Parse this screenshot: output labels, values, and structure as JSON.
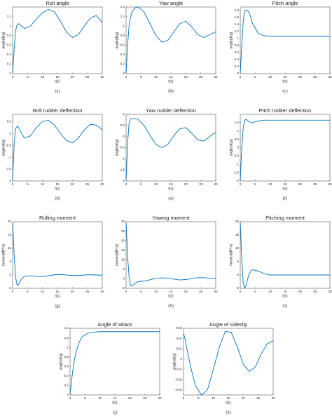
{
  "chart_data": [
    {
      "type": "line",
      "title": "Roll angle",
      "xlabel": "t(s)",
      "ylabel": "angle(deg)",
      "label": "(a)",
      "color": "#0072bd",
      "xlim": [
        0,
        30
      ],
      "xticks": [
        0,
        5,
        10,
        15,
        20,
        25,
        30
      ],
      "ylim": [
        0,
        1.4
      ],
      "yticks": [
        0,
        0.2,
        0.4,
        0.6,
        0.8,
        1,
        1.2
      ],
      "x": [
        0,
        0.5,
        1,
        1.5,
        2,
        3,
        4,
        6,
        8,
        10,
        12,
        14,
        16,
        18,
        20,
        22,
        24,
        26,
        28,
        30
      ],
      "values": [
        0,
        0.5,
        0.9,
        1.03,
        1.05,
        1.0,
        0.95,
        1.0,
        1.15,
        1.28,
        1.35,
        1.3,
        1.1,
        0.88,
        0.76,
        0.82,
        1.0,
        1.17,
        1.22,
        1.08
      ]
    },
    {
      "type": "line",
      "title": "Yaw angle",
      "xlabel": "t(s)",
      "ylabel": "angle(deg)",
      "label": "(b)",
      "color": "#0072bd",
      "xlim": [
        0,
        30
      ],
      "xticks": [
        0,
        5,
        10,
        15,
        20,
        25,
        30
      ],
      "ylim": [
        0,
        1.4
      ],
      "yticks": [
        0,
        0.2,
        0.4,
        0.6,
        0.8,
        1,
        1.2,
        1.4
      ],
      "x": [
        0,
        0.5,
        1,
        1.5,
        2,
        3,
        4,
        6,
        8,
        10,
        12,
        14,
        16,
        18,
        20,
        22,
        24,
        26,
        28,
        30
      ],
      "values": [
        0,
        0.6,
        1.0,
        1.2,
        1.3,
        1.38,
        1.4,
        1.3,
        1.05,
        0.8,
        0.66,
        0.7,
        0.88,
        1.05,
        1.1,
        0.98,
        0.82,
        0.76,
        0.82,
        0.88
      ]
    },
    {
      "type": "line",
      "title": "Pitch angle",
      "xlabel": "t(s)",
      "ylabel": "angle(deg)",
      "label": "(c)",
      "color": "#0072bd",
      "xlim": [
        0,
        30
      ],
      "xticks": [
        0,
        5,
        10,
        15,
        20,
        25,
        30
      ],
      "ylim": [
        0,
        1.9
      ],
      "yticks": [
        0,
        0.2,
        0.4,
        0.6,
        0.8,
        1,
        1.2,
        1.4,
        1.6,
        1.8
      ],
      "x": [
        0,
        0.5,
        1,
        1.5,
        2,
        3,
        4,
        6,
        8,
        10,
        12,
        14,
        16,
        18,
        20,
        22,
        24,
        26,
        28,
        30
      ],
      "values": [
        0,
        0.8,
        1.5,
        1.78,
        1.82,
        1.75,
        1.45,
        1.15,
        1.08,
        1.07,
        1.07,
        1.07,
        1.07,
        1.07,
        1.07,
        1.07,
        1.07,
        1.07,
        1.07,
        1.07
      ]
    },
    {
      "type": "line",
      "title": "Roll rudder deflection",
      "xlabel": "t(s)",
      "ylabel": "angle(deg)",
      "label": "(d)",
      "color": "#0072bd",
      "xlim": [
        0,
        30
      ],
      "xticks": [
        0,
        5,
        10,
        15,
        20,
        25,
        30
      ],
      "ylim": [
        -2,
        0.8
      ],
      "yticks": [
        -2,
        -1.5,
        -1,
        -0.5,
        0,
        0.5
      ],
      "x": [
        0,
        0.5,
        1,
        1.5,
        2,
        3,
        4,
        6,
        8,
        10,
        12,
        14,
        16,
        18,
        20,
        22,
        24,
        26,
        28,
        30
      ],
      "values": [
        -2,
        -0.5,
        0.2,
        0.3,
        0.25,
        0,
        -0.2,
        -0.1,
        0.25,
        0.5,
        0.55,
        0.35,
        0,
        -0.3,
        -0.4,
        -0.2,
        0.15,
        0.38,
        0.35,
        0.15
      ]
    },
    {
      "type": "line",
      "title": "Yaw rudder deflection",
      "xlabel": "t(s)",
      "ylabel": "angle(deg)",
      "label": "(e)",
      "color": "#0072bd",
      "xlim": [
        0,
        30
      ],
      "xticks": [
        0,
        5,
        10,
        15,
        20,
        25,
        30
      ],
      "ylim": [
        -2,
        1
      ],
      "yticks": [
        -2,
        -1.5,
        -1,
        -0.5,
        0,
        0.5,
        1
      ],
      "x": [
        0,
        0.5,
        1,
        1.5,
        2,
        3,
        4,
        6,
        8,
        10,
        12,
        14,
        16,
        18,
        20,
        22,
        24,
        26,
        28,
        30
      ],
      "values": [
        -2,
        -0.3,
        0.6,
        0.8,
        0.8,
        0.8,
        0.78,
        0.5,
        0.05,
        -0.35,
        -0.5,
        -0.35,
        0.05,
        0.35,
        0.4,
        0.15,
        -0.15,
        -0.2,
        0,
        0.2
      ]
    },
    {
      "type": "line",
      "title": "Pitch rudder deflection",
      "xlabel": "t(s)",
      "ylabel": "angle(deg)",
      "label": "(f)",
      "color": "#0072bd",
      "xlim": [
        0,
        30
      ],
      "xticks": [
        0,
        5,
        10,
        15,
        20,
        25,
        30
      ],
      "ylim": [
        -2,
        2
      ],
      "yticks": [
        -2,
        -1.5,
        -1,
        -0.5,
        0,
        0.5,
        1,
        1.5
      ],
      "x": [
        0,
        0.5,
        1,
        1.5,
        2,
        3,
        4,
        6,
        8,
        10,
        12,
        14,
        16,
        18,
        20,
        22,
        24,
        26,
        28,
        30
      ],
      "values": [
        -2,
        0,
        1.2,
        1.65,
        1.7,
        1.55,
        1.5,
        1.6,
        1.65,
        1.65,
        1.65,
        1.65,
        1.65,
        1.65,
        1.65,
        1.65,
        1.65,
        1.65,
        1.65,
        1.65
      ]
    },
    {
      "type": "line",
      "title": "Rolling moment",
      "xlabel": "t(s)",
      "ylabel": "moment(N*m)",
      "label": "(g)",
      "color": "#0072bd",
      "xlim": [
        0,
        30
      ],
      "xticks": [
        0,
        5,
        10,
        15,
        20,
        25,
        30
      ],
      "ylim": [
        -5,
        20
      ],
      "yticks": [
        -5,
        0,
        5,
        10,
        15,
        20
      ],
      "x": [
        0,
        0.5,
        1,
        1.5,
        2,
        3,
        4,
        6,
        8,
        10,
        12,
        14,
        16,
        18,
        20,
        22,
        24,
        26,
        28,
        30
      ],
      "values": [
        20,
        8,
        -1,
        -3.8,
        -3.5,
        -1.5,
        -0.5,
        -0.3,
        -0.5,
        -0.6,
        -0.3,
        0.1,
        0.2,
        0,
        -0.2,
        -0.2,
        0,
        0.1,
        0,
        -0.1
      ]
    },
    {
      "type": "line",
      "title": "Yawing moment",
      "xlabel": "t(s)",
      "ylabel": "moment(N*m)",
      "label": "(h)",
      "color": "#0072bd",
      "xlim": [
        0,
        30
      ],
      "xticks": [
        0,
        5,
        10,
        15,
        20,
        25,
        30
      ],
      "ylim": [
        -5,
        30
      ],
      "yticks": [
        -5,
        0,
        5,
        10,
        15,
        20,
        25,
        30
      ],
      "x": [
        0,
        0.5,
        1,
        1.5,
        2,
        3,
        4,
        6,
        8,
        10,
        12,
        14,
        16,
        18,
        20,
        22,
        24,
        26,
        28,
        30
      ],
      "values": [
        30,
        12,
        1,
        -3.5,
        -3.8,
        -2.5,
        -1.5,
        -1.2,
        -0.5,
        0.2,
        0.5,
        0.3,
        -0.2,
        -0.6,
        -0.4,
        0.2,
        0.6,
        0.6,
        0.3,
        0.2
      ]
    },
    {
      "type": "line",
      "title": "Pitching moment",
      "xlabel": "t(s)",
      "ylabel": "moment(N*m)",
      "label": "(i)",
      "color": "#0072bd",
      "xlim": [
        0,
        30
      ],
      "xticks": [
        0,
        5,
        10,
        15,
        20,
        25,
        30
      ],
      "ylim": [
        -5,
        20
      ],
      "yticks": [
        -5,
        0,
        5,
        10,
        15,
        20
      ],
      "x": [
        0,
        0.5,
        1,
        1.5,
        2,
        3,
        4,
        6,
        8,
        10,
        12,
        14,
        16,
        18,
        20,
        22,
        24,
        26,
        28,
        30
      ],
      "values": [
        20,
        6,
        -3,
        -5,
        -3.5,
        0.5,
        2,
        1.5,
        0.5,
        0,
        0,
        0,
        0,
        0,
        0,
        0,
        0,
        0,
        0,
        0
      ]
    },
    {
      "type": "line",
      "title": "Angle of attack",
      "xlabel": "t(s)",
      "ylabel": "angle(deg)",
      "label": "(j)",
      "color": "#0072bd",
      "xlim": [
        0,
        30
      ],
      "xticks": [
        0,
        5,
        10,
        15,
        20,
        25,
        30
      ],
      "ylim": [
        0,
        1.4
      ],
      "yticks": [
        0,
        0.2,
        0.4,
        0.6,
        0.8,
        1,
        1.2,
        1.4
      ],
      "x": [
        0,
        0.5,
        1,
        1.5,
        2,
        3,
        4,
        6,
        8,
        10,
        12,
        14,
        16,
        18,
        20,
        22,
        24,
        26,
        28,
        30
      ],
      "values": [
        0,
        0.3,
        0.55,
        0.75,
        0.9,
        1.1,
        1.22,
        1.3,
        1.32,
        1.33,
        1.33,
        1.33,
        1.33,
        1.33,
        1.33,
        1.33,
        1.33,
        1.33,
        1.33,
        1.33
      ]
    },
    {
      "type": "line",
      "title": "Angle of sideslip",
      "xlabel": "t(s)",
      "ylabel": "angle(deg)",
      "label": "(k)",
      "color": "#0072bd",
      "xlim": [
        0,
        30
      ],
      "xticks": [
        0,
        5,
        10,
        15,
        20,
        25,
        30
      ],
      "ylim": [
        -0.035,
        0.03
      ],
      "yticks": [
        -0.03,
        -0.02,
        -0.01,
        0,
        0.01,
        0.02,
        0.03
      ],
      "x": [
        0,
        0.5,
        1,
        1.5,
        2,
        3,
        4,
        6,
        8,
        10,
        12,
        14,
        16,
        18,
        20,
        22,
        24,
        26,
        28,
        30
      ],
      "values": [
        0.025,
        0.02,
        0.012,
        0.005,
        -0.002,
        -0.015,
        -0.026,
        -0.035,
        -0.03,
        -0.01,
        0.012,
        0.027,
        0.026,
        0.012,
        -0.005,
        -0.012,
        -0.008,
        0.005,
        0.015,
        0.018
      ]
    }
  ]
}
